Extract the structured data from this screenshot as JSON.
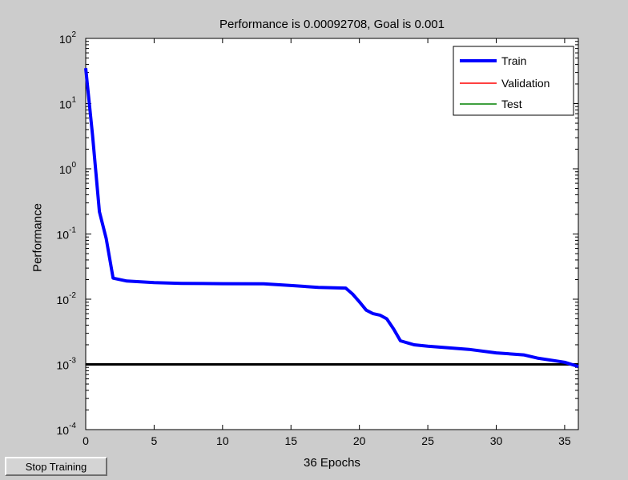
{
  "chart_data": {
    "type": "line",
    "title": "Performance is 0.00092708, Goal is 0.001",
    "xlabel": "36 Epochs",
    "ylabel": "Performance",
    "xlim": [
      0,
      36
    ],
    "ylim": [
      0.0001,
      100
    ],
    "yscale": "log",
    "grid": false,
    "legend_position": "top-right",
    "x_ticks": [
      "0",
      "5",
      "10",
      "15",
      "20",
      "25",
      "30",
      "35"
    ],
    "y_ticks": [
      {
        "base": "10",
        "exp": "2"
      },
      {
        "base": "10",
        "exp": "1"
      },
      {
        "base": "10",
        "exp": "0"
      },
      {
        "base": "10",
        "exp": "-1"
      },
      {
        "base": "10",
        "exp": "-2"
      },
      {
        "base": "10",
        "exp": "-3"
      },
      {
        "base": "10",
        "exp": "-4"
      }
    ],
    "series": [
      {
        "name": "Train",
        "color": "#0000ff",
        "x": [
          0,
          0.5,
          1,
          1.5,
          2,
          3,
          5,
          7,
          10,
          13,
          15,
          17,
          19,
          19.5,
          20,
          20.5,
          21,
          21.5,
          22,
          22.5,
          23,
          24,
          25,
          28,
          30,
          32,
          33,
          35,
          36
        ],
        "y": [
          35,
          3.3,
          0.22,
          0.085,
          0.021,
          0.019,
          0.018,
          0.0175,
          0.0173,
          0.0172,
          0.0162,
          0.0152,
          0.0148,
          0.012,
          0.0091,
          0.0068,
          0.006,
          0.0057,
          0.005,
          0.0035,
          0.0023,
          0.002,
          0.0019,
          0.0017,
          0.0015,
          0.0014,
          0.00125,
          0.00108,
          0.00093
        ]
      },
      {
        "name": "Validation",
        "color": "#ff0000",
        "x": [],
        "y": []
      },
      {
        "name": "Test",
        "color": "#008000",
        "x": [],
        "y": []
      }
    ],
    "goal": {
      "value": 0.001,
      "color": "#000000"
    }
  },
  "controls": {
    "stop_button_label": "Stop Training"
  }
}
